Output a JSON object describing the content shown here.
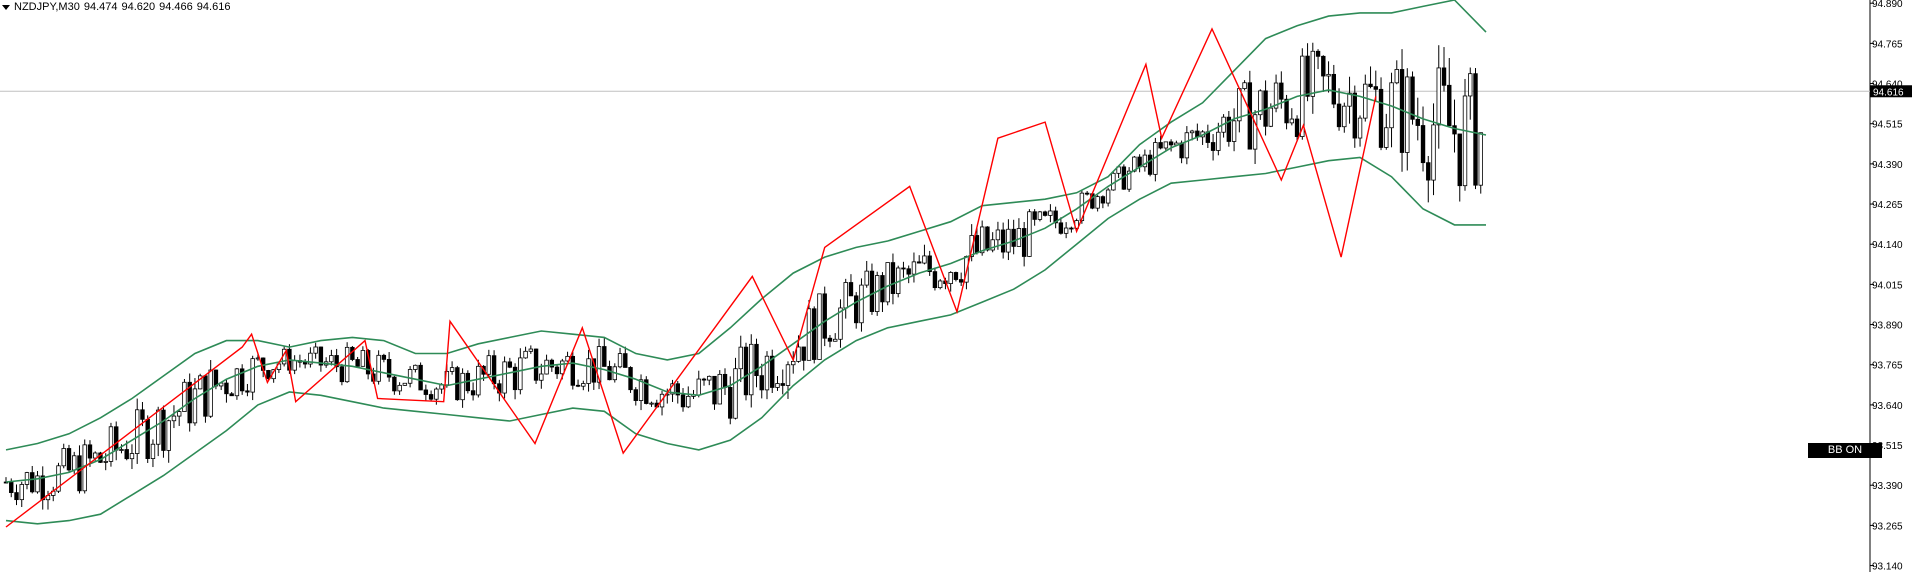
{
  "header": {
    "symbol": "NZDJPY,M30",
    "open": "94.474",
    "high": "94.620",
    "low": "94.466",
    "close": "94.616"
  },
  "bb_button": {
    "label": "BB ON"
  },
  "colors": {
    "background": "#ffffff",
    "bollinger": "#2e8b57",
    "zigzag": "#ff0000",
    "candle": "#000000",
    "price_marker_bg": "#000000",
    "current_line": "#c0c0c0"
  },
  "chart_data": {
    "type": "candlestick",
    "title": "NZDJPY,M30",
    "y_axis": {
      "ylim": [
        93.12,
        94.9
      ],
      "ticks": [
        "94.890",
        "94.765",
        "94.640",
        "94.515",
        "94.390",
        "94.265",
        "94.140",
        "94.015",
        "93.890",
        "93.765",
        "93.640",
        "93.515",
        "93.390",
        "93.265",
        "93.140"
      ],
      "current_price": "94.616"
    },
    "indicators": [
      "Bollinger Bands",
      "ZigZag"
    ],
    "grid": false,
    "legend": "none",
    "bollinger": {
      "upper": [
        93.5,
        93.52,
        93.55,
        93.6,
        93.66,
        93.73,
        93.8,
        93.84,
        93.84,
        93.82,
        93.84,
        93.85,
        93.84,
        93.8,
        93.8,
        93.83,
        93.85,
        93.87,
        93.86,
        93.85,
        93.8,
        93.78,
        93.8,
        93.88,
        93.97,
        94.05,
        94.1,
        94.13,
        94.15,
        94.18,
        94.21,
        94.26,
        94.27,
        94.28,
        94.3,
        94.35,
        94.45,
        94.52,
        94.58,
        94.68,
        94.78,
        94.82,
        94.85,
        94.86,
        94.86,
        94.88,
        94.9,
        94.8
      ],
      "middle": [
        93.4,
        93.41,
        93.43,
        93.47,
        93.53,
        93.59,
        93.66,
        93.72,
        93.76,
        93.78,
        93.77,
        93.76,
        93.74,
        93.72,
        93.7,
        93.72,
        93.74,
        93.76,
        93.77,
        93.75,
        93.72,
        93.68,
        93.67,
        93.7,
        93.76,
        93.83,
        93.9,
        93.96,
        94.01,
        94.05,
        94.08,
        94.12,
        94.15,
        94.19,
        94.25,
        94.32,
        94.38,
        94.44,
        94.48,
        94.53,
        94.56,
        94.6,
        94.62,
        94.6,
        94.57,
        94.53,
        94.5,
        94.48
      ],
      "lower": [
        93.28,
        93.27,
        93.28,
        93.3,
        93.36,
        93.42,
        93.49,
        93.56,
        93.64,
        93.68,
        93.67,
        93.65,
        93.63,
        93.62,
        93.61,
        93.6,
        93.59,
        93.61,
        93.63,
        93.62,
        93.55,
        93.52,
        93.5,
        93.53,
        93.6,
        93.7,
        93.78,
        93.84,
        93.88,
        93.9,
        93.92,
        93.96,
        94.0,
        94.06,
        94.14,
        94.22,
        94.28,
        94.33,
        94.34,
        94.35,
        94.36,
        94.38,
        94.4,
        94.41,
        94.35,
        94.25,
        94.2,
        94.2
      ]
    },
    "zigzag": [
      {
        "i": 0,
        "price": 93.26
      },
      {
        "i": 7.5,
        "price": 93.82
      },
      {
        "i": 7.8,
        "price": 93.86
      },
      {
        "i": 8.3,
        "price": 93.71
      },
      {
        "i": 8.9,
        "price": 93.81
      },
      {
        "i": 9.2,
        "price": 93.65
      },
      {
        "i": 11.4,
        "price": 93.84
      },
      {
        "i": 11.8,
        "price": 93.66
      },
      {
        "i": 13.9,
        "price": 93.65
      },
      {
        "i": 14.1,
        "price": 93.9
      },
      {
        "i": 16.8,
        "price": 93.52
      },
      {
        "i": 18.3,
        "price": 93.88
      },
      {
        "i": 19.6,
        "price": 93.49
      },
      {
        "i": 23.7,
        "price": 94.04
      },
      {
        "i": 25.0,
        "price": 93.78
      },
      {
        "i": 26.0,
        "price": 94.13
      },
      {
        "i": 28.7,
        "price": 94.32
      },
      {
        "i": 30.2,
        "price": 93.93
      },
      {
        "i": 31.5,
        "price": 94.47
      },
      {
        "i": 33.0,
        "price": 94.52
      },
      {
        "i": 34.0,
        "price": 94.18
      },
      {
        "i": 36.2,
        "price": 94.7
      },
      {
        "i": 36.7,
        "price": 94.47
      },
      {
        "i": 38.3,
        "price": 94.81
      },
      {
        "i": 40.5,
        "price": 94.34
      },
      {
        "i": 41.2,
        "price": 94.51
      },
      {
        "i": 42.4,
        "price": 94.1
      },
      {
        "i": 43.5,
        "price": 94.6
      }
    ]
  }
}
